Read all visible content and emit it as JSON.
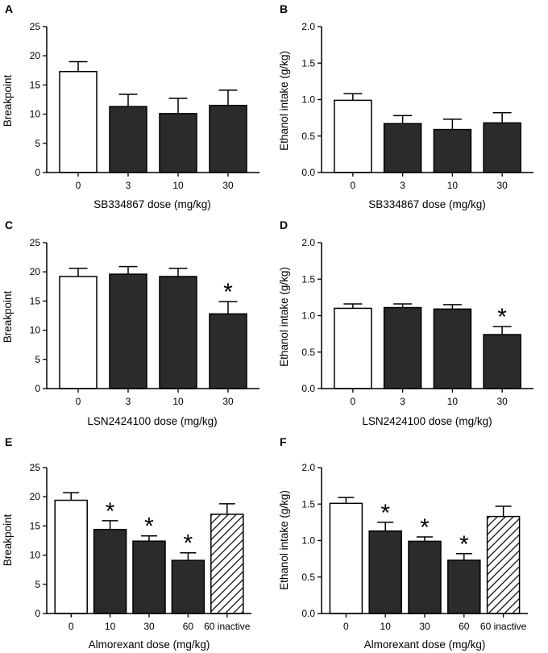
{
  "figure": {
    "colors": {
      "ink": "#000000",
      "open_bar": "#ffffff",
      "filled_bar": "#2b2b2b"
    }
  },
  "chart_data": [
    {
      "panel": "A",
      "type": "bar",
      "ylabel": "Breakpoint",
      "xlabel": "SB334867 dose (mg/kg)",
      "ylim": [
        0,
        25
      ],
      "yticks": [
        "0",
        "5",
        "10",
        "15",
        "20",
        "25"
      ],
      "categories": [
        "0",
        "3",
        "10",
        "30"
      ],
      "values": [
        17.3,
        11.3,
        10.1,
        11.5
      ],
      "errors": [
        1.7,
        2.1,
        2.6,
        2.6
      ],
      "fills": [
        "open",
        "filled",
        "filled",
        "filled"
      ],
      "significant": [
        false,
        false,
        false,
        false
      ]
    },
    {
      "panel": "B",
      "type": "bar",
      "ylabel": "Ethanol intake (g/kg)",
      "xlabel": "SB334867 dose (mg/kg)",
      "ylim": [
        0,
        2.0
      ],
      "yticks": [
        "0.0",
        "0.5",
        "1.0",
        "1.5",
        "2.0"
      ],
      "categories": [
        "0",
        "3",
        "10",
        "30"
      ],
      "values": [
        0.99,
        0.67,
        0.59,
        0.68
      ],
      "errors": [
        0.09,
        0.11,
        0.14,
        0.14
      ],
      "fills": [
        "open",
        "filled",
        "filled",
        "filled"
      ],
      "significant": [
        false,
        false,
        false,
        false
      ]
    },
    {
      "panel": "C",
      "type": "bar",
      "ylabel": "Breakpoint",
      "xlabel": "LSN2424100 dose (mg/kg)",
      "ylim": [
        0,
        25
      ],
      "yticks": [
        "0",
        "5",
        "10",
        "15",
        "20",
        "25"
      ],
      "categories": [
        "0",
        "3",
        "10",
        "30"
      ],
      "values": [
        19.2,
        19.6,
        19.2,
        12.8
      ],
      "errors": [
        1.4,
        1.3,
        1.4,
        2.1
      ],
      "fills": [
        "open",
        "filled",
        "filled",
        "filled"
      ],
      "significant": [
        false,
        false,
        false,
        true
      ]
    },
    {
      "panel": "D",
      "type": "bar",
      "ylabel": "Ethanol intake (g/kg)",
      "xlabel": "LSN2424100 dose (mg/kg)",
      "ylim": [
        0,
        2.0
      ],
      "yticks": [
        "0.0",
        "0.5",
        "1.0",
        "1.5",
        "2.0"
      ],
      "categories": [
        "0",
        "3",
        "10",
        "30"
      ],
      "values": [
        1.1,
        1.11,
        1.09,
        0.74
      ],
      "errors": [
        0.06,
        0.05,
        0.06,
        0.11
      ],
      "fills": [
        "open",
        "filled",
        "filled",
        "filled"
      ],
      "significant": [
        false,
        false,
        false,
        true
      ]
    },
    {
      "panel": "E",
      "type": "bar",
      "ylabel": "Breakpoint",
      "xlabel": "Almorexant dose (mg/kg)",
      "ylim": [
        0,
        25
      ],
      "yticks": [
        "0",
        "5",
        "10",
        "15",
        "20",
        "25"
      ],
      "categories": [
        "0",
        "10",
        "30",
        "60",
        "60 inactive"
      ],
      "values": [
        19.4,
        14.4,
        12.4,
        9.1,
        17.0
      ],
      "errors": [
        1.3,
        1.5,
        0.9,
        1.3,
        1.8
      ],
      "fills": [
        "open",
        "filled",
        "filled",
        "filled",
        "hatched"
      ],
      "significant": [
        false,
        true,
        true,
        true,
        false
      ]
    },
    {
      "panel": "F",
      "type": "bar",
      "ylabel": "Ethanol intake (g/kg)",
      "xlabel": "Almorexant dose (mg/kg)",
      "ylim": [
        0,
        2.0
      ],
      "yticks": [
        "0.0",
        "0.5",
        "1.0",
        "1.5",
        "2.0"
      ],
      "categories": [
        "0",
        "10",
        "30",
        "60",
        "60 inactive"
      ],
      "values": [
        1.51,
        1.13,
        0.99,
        0.73,
        1.33
      ],
      "errors": [
        0.08,
        0.12,
        0.06,
        0.09,
        0.14
      ],
      "fills": [
        "open",
        "filled",
        "filled",
        "filled",
        "hatched"
      ],
      "significant": [
        false,
        true,
        true,
        true,
        false
      ]
    }
  ],
  "significance_marker": "*"
}
